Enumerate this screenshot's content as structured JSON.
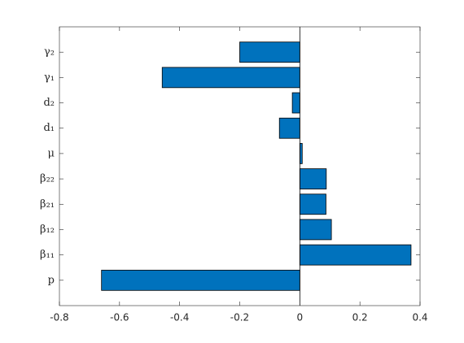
{
  "chart_data": {
    "type": "barh",
    "categories": [
      "p",
      "β₁₁",
      "β₁₂",
      "β₂₁",
      "β₂₂",
      "μ",
      "d₁",
      "d₂",
      "γ₁",
      "γ₂"
    ],
    "values": [
      -0.66,
      0.37,
      0.105,
      0.087,
      0.088,
      0.008,
      -0.068,
      -0.025,
      -0.458,
      -0.2
    ],
    "color": "#0072bd",
    "xlim": [
      -0.8,
      0.4
    ],
    "xticks": [
      -0.8,
      -0.6,
      -0.4,
      -0.2,
      0,
      0.2,
      0.4
    ]
  }
}
